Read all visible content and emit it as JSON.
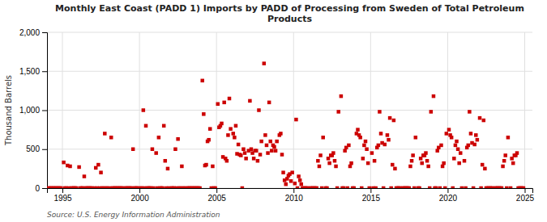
{
  "chart_data": {
    "type": "scatter",
    "title": "Monthly East Coast (PADD 1) Imports by PADD of Processing from Sweden of Total Petroleum\nProducts",
    "ylabel": "Thousand Barrels",
    "annotation": "Source: U.S. Energy Information Administration",
    "color": "#cc0000",
    "marker": "square",
    "grid": true,
    "xlim": [
      1994.0,
      2025.5
    ],
    "ylim": [
      0,
      2000
    ],
    "xticks": [
      1995,
      2000,
      2005,
      2010,
      2015,
      2020,
      2025
    ],
    "yticks": [
      0,
      500,
      {
        "value": 1000,
        "label": "1,000"
      },
      {
        "value": 1500,
        "label": "1,500"
      },
      {
        "value": 2000,
        "label": "2,000"
      }
    ],
    "x": [
      1994.083,
      1994.167,
      1994.25,
      1994.333,
      1994.417,
      1994.5,
      1994.583,
      1994.667,
      1994.75,
      1994.833,
      1994.917,
      1995.083,
      1995.167,
      1995.25,
      1995.333,
      1995.417,
      1995.5,
      1995.583,
      1995.667,
      1995.75,
      1995.833,
      1995.917,
      1996.083,
      1996.167,
      1996.25,
      1996.333,
      1996.417,
      1996.5,
      1996.583,
      1996.667,
      1996.75,
      1996.833,
      1996.917,
      1997.083,
      1997.167,
      1997.25,
      1997.333,
      1997.417,
      1997.5,
      1997.583,
      1997.667,
      1997.75,
      1997.833,
      1997.917,
      1998.083,
      1998.167,
      1998.25,
      1998.333,
      1998.417,
      1998.5,
      1998.583,
      1998.667,
      1998.75,
      1998.833,
      1998.917,
      1999.083,
      1999.167,
      1999.25,
      1999.333,
      1999.417,
      1999.5,
      1999.583,
      1999.667,
      1999.75,
      1999.833,
      1999.917,
      2000.083,
      2000.167,
      2000.25,
      2000.333,
      2000.417,
      2000.5,
      2000.583,
      2000.667,
      2000.75,
      2000.833,
      2000.917,
      2001.083,
      2001.167,
      2001.25,
      2001.333,
      2001.417,
      2001.5,
      2001.583,
      2001.667,
      2001.75,
      2001.833,
      2001.917,
      2002.083,
      2002.167,
      2002.25,
      2002.333,
      2002.417,
      2002.5,
      2002.583,
      2002.667,
      2002.75,
      2002.833,
      2002.917,
      2003.083,
      2003.167,
      2003.25,
      2003.333,
      2003.417,
      2003.5,
      2003.583,
      2003.667,
      2003.75,
      2003.833,
      2003.917,
      2004.083,
      2004.167,
      2004.25,
      2004.333,
      2004.417,
      2004.5,
      2004.583,
      2004.667,
      2004.75,
      2004.833,
      2004.917,
      2005.083,
      2005.167,
      2005.25,
      2005.333,
      2005.417,
      2005.5,
      2005.583,
      2005.667,
      2005.75,
      2005.833,
      2005.917,
      2006.083,
      2006.167,
      2006.25,
      2006.333,
      2006.417,
      2006.5,
      2006.583,
      2006.667,
      2006.75,
      2006.833,
      2006.917,
      2007.083,
      2007.167,
      2007.25,
      2007.333,
      2007.417,
      2007.5,
      2007.583,
      2007.667,
      2007.75,
      2007.833,
      2007.917,
      2008.083,
      2008.167,
      2008.25,
      2008.333,
      2008.417,
      2008.5,
      2008.583,
      2008.667,
      2008.75,
      2008.833,
      2008.917,
      2009.083,
      2009.167,
      2009.25,
      2009.333,
      2009.417,
      2009.5,
      2009.583,
      2009.667,
      2009.75,
      2009.833,
      2009.917,
      2010.083,
      2010.167,
      2010.25,
      2010.333,
      2010.417,
      2010.5,
      2010.583,
      2010.667,
      2010.75,
      2010.833,
      2010.917,
      2011.083,
      2011.167,
      2011.25,
      2011.333,
      2011.417,
      2011.5,
      2011.583,
      2011.667,
      2011.75,
      2011.833,
      2011.917,
      2012.083,
      2012.167,
      2012.25,
      2012.333,
      2012.417,
      2012.5,
      2012.583,
      2012.667,
      2012.75,
      2012.833,
      2012.917,
      2013.083,
      2013.167,
      2013.25,
      2013.333,
      2013.417,
      2013.5,
      2013.583,
      2013.667,
      2013.75,
      2013.833,
      2013.917,
      2014.083,
      2014.167,
      2014.25,
      2014.333,
      2014.417,
      2014.5,
      2014.583,
      2014.667,
      2014.75,
      2014.833,
      2014.917,
      2015.083,
      2015.167,
      2015.25,
      2015.333,
      2015.417,
      2015.5,
      2015.583,
      2015.667,
      2015.75,
      2015.833,
      2015.917,
      2016.083,
      2016.167,
      2016.25,
      2016.333,
      2016.417,
      2016.5,
      2016.583,
      2016.667,
      2016.75,
      2016.833,
      2016.917,
      2017.083,
      2017.167,
      2017.25,
      2017.333,
      2017.417,
      2017.5,
      2017.583,
      2017.667,
      2017.75,
      2017.833,
      2017.917,
      2018.083,
      2018.167,
      2018.25,
      2018.333,
      2018.417,
      2018.5,
      2018.583,
      2018.667,
      2018.75,
      2018.833,
      2018.917,
      2019.083,
      2019.167,
      2019.25,
      2019.333,
      2019.417,
      2019.5,
      2019.583,
      2019.667,
      2019.75,
      2019.833,
      2019.917,
      2020.083,
      2020.167,
      2020.25,
      2020.333,
      2020.417,
      2020.5,
      2020.583,
      2020.667,
      2020.75,
      2020.833,
      2020.917,
      2021.083,
      2021.167,
      2021.25,
      2021.333,
      2021.417,
      2021.5,
      2021.583,
      2021.667,
      2021.75,
      2021.833,
      2021.917,
      2022.083,
      2022.167,
      2022.25,
      2022.333,
      2022.417,
      2022.5,
      2022.583,
      2022.667,
      2022.75,
      2022.833,
      2022.917,
      2023.083,
      2023.167,
      2023.25,
      2023.333,
      2023.417,
      2023.5,
      2023.583,
      2023.667,
      2023.75,
      2023.833,
      2023.917,
      2024.083,
      2024.167,
      2024.25,
      2024.333,
      2024.417,
      2024.5,
      2024.583,
      2024.667,
      2024.75,
      2024.833,
      2024.917
    ],
    "values": [
      0,
      0,
      0,
      0,
      0,
      0,
      0,
      0,
      0,
      0,
      0,
      330,
      0,
      0,
      290,
      0,
      280,
      0,
      0,
      0,
      0,
      0,
      270,
      0,
      0,
      0,
      150,
      0,
      0,
      0,
      0,
      0,
      0,
      0,
      260,
      0,
      300,
      0,
      200,
      0,
      0,
      700,
      0,
      0,
      0,
      650,
      0,
      0,
      0,
      0,
      0,
      0,
      0,
      0,
      0,
      0,
      0,
      0,
      0,
      0,
      0,
      500,
      0,
      0,
      0,
      0,
      0,
      0,
      1000,
      0,
      800,
      0,
      0,
      0,
      0,
      500,
      0,
      450,
      0,
      650,
      0,
      0,
      0,
      800,
      350,
      0,
      250,
      0,
      0,
      0,
      0,
      500,
      0,
      630,
      0,
      0,
      280,
      0,
      0,
      0,
      0,
      0,
      0,
      0,
      0,
      0,
      0,
      0,
      0,
      0,
      1380,
      950,
      290,
      300,
      600,
      620,
      760,
      0,
      280,
      0,
      0,
      1080,
      780,
      800,
      830,
      400,
      1100,
      380,
      350,
      680,
      1150,
      760,
      700,
      650,
      800,
      440,
      560,
      430,
      420,
      0,
      500,
      450,
      380,
      480,
      1120,
      500,
      450,
      380,
      480,
      480,
      350,
      1000,
      430,
      600,
      1600,
      680,
      550,
      450,
      1100,
      600,
      480,
      550,
      530,
      480,
      600,
      680,
      700,
      430,
      200,
      100,
      50,
      120,
      160,
      180,
      90,
      200,
      60,
      880,
      0,
      150,
      100,
      50,
      0,
      0,
      0,
      0,
      0,
      0,
      0,
      0,
      0,
      0,
      0,
      350,
      280,
      420,
      0,
      650,
      0,
      0,
      380,
      320,
      420,
      420,
      450,
      350,
      280,
      0,
      980,
      1180,
      0,
      0,
      480,
      520,
      0,
      550,
      280,
      320,
      0,
      0,
      700,
      750,
      680,
      650,
      0,
      380,
      550,
      600,
      500,
      320,
      0,
      450,
      0,
      350,
      0,
      520,
      550,
      980,
      700,
      580,
      0,
      560,
      680,
      620,
      900,
      0,
      300,
      870,
      250,
      0,
      0,
      0,
      0,
      0,
      0,
      0,
      0,
      0,
      0,
      280,
      350,
      420,
      0,
      650,
      0,
      0,
      380,
      320,
      420,
      420,
      450,
      350,
      280,
      0,
      980,
      1180,
      0,
      0,
      480,
      520,
      0,
      550,
      280,
      320,
      0,
      700,
      750,
      680,
      650,
      0,
      380,
      550,
      600,
      500,
      320,
      450,
      0,
      350,
      0,
      520,
      550,
      980,
      700,
      580,
      0,
      560,
      680,
      620,
      900,
      0,
      300,
      870,
      250,
      0,
      0,
      0,
      0,
      0,
      0,
      0,
      0,
      0,
      0,
      0,
      0,
      280,
      350,
      420,
      0,
      650,
      0,
      380,
      320,
      420,
      420,
      450,
      0,
      0,
      0,
      0,
      0
    ]
  }
}
